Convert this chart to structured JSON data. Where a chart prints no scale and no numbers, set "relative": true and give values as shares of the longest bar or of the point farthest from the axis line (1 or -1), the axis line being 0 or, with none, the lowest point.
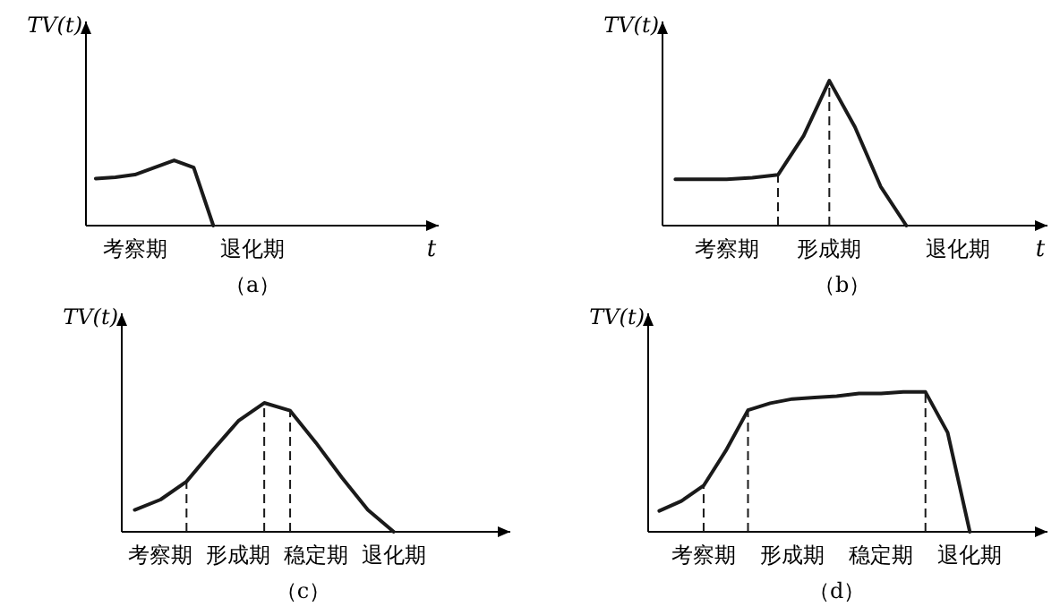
{
  "chart_data": [
    {
      "type": "line",
      "title": "（a）",
      "xlabel": "t",
      "ylabel": "TV(t)",
      "relative": true,
      "categories": [
        null,
        null,
        "考察期",
        null,
        null,
        null,
        null,
        null,
        "退化期",
        null,
        null,
        null,
        null,
        null,
        null,
        null,
        null,
        null
      ],
      "series": [
        {
          "color": "#1a1a1a",
          "values": [
            0.72,
            0.74,
            0.78,
            0.89,
            1,
            0.89,
            0,
            null,
            null,
            null,
            null,
            null,
            null,
            null,
            null,
            null,
            null,
            null
          ]
        }
      ]
    },
    {
      "type": "line",
      "title": "（b）",
      "xlabel": "t",
      "ylabel": "TV(t)",
      "relative": true,
      "categories": [
        null,
        null,
        "考察期",
        null,
        null,
        null,
        "形成期",
        null,
        null,
        null,
        null,
        "退化期",
        null,
        null,
        null
      ],
      "series": [
        {
          "color": "#1a1a1a",
          "values": [
            0.32,
            0.32,
            0.32,
            0.33,
            0.35,
            0.62,
            1,
            0.68,
            0.27,
            0,
            null,
            null,
            null,
            null,
            null
          ]
        }
      ]
    },
    {
      "type": "line",
      "title": "（c）",
      "ylabel": "TV(t)",
      "relative": true,
      "categories": [
        null,
        "考察期",
        null,
        null,
        "形成期",
        null,
        null,
        "稳定期",
        null,
        null,
        "退化期",
        null,
        null,
        null,
        null
      ],
      "series": [
        {
          "color": "#1a1a1a",
          "values": [
            0.17,
            0.25,
            0.39,
            0.63,
            0.86,
            1,
            0.94,
            0.69,
            0.42,
            0.17,
            0,
            null,
            null,
            null,
            null
          ]
        }
      ]
    },
    {
      "type": "line",
      "title": "（d）",
      "ylabel": "TV(t)",
      "relative": true,
      "categories": [
        null,
        null,
        "考察期",
        null,
        null,
        null,
        "形成期",
        null,
        null,
        null,
        "稳定期",
        null,
        null,
        null,
        "退化期",
        null,
        null,
        null
      ],
      "series": [
        {
          "color": "#1a1a1a",
          "values": [
            0.15,
            0.22,
            0.33,
            0.58,
            0.87,
            0.92,
            0.95,
            0.96,
            0.97,
            0.99,
            0.99,
            1,
            1,
            0.71,
            0,
            null,
            null,
            null
          ]
        }
      ]
    }
  ]
}
